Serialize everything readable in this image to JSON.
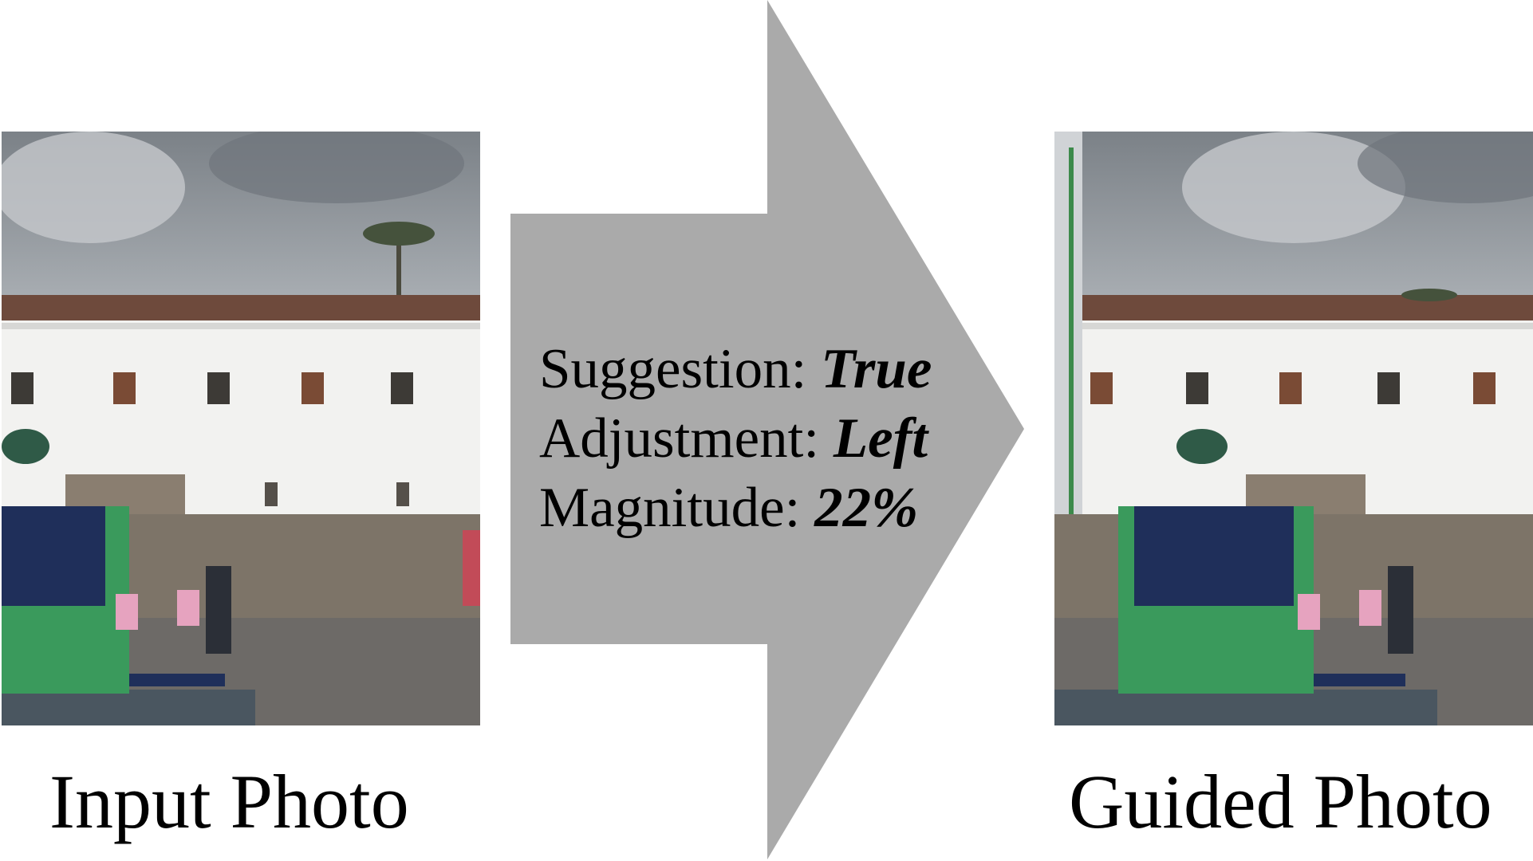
{
  "input": {
    "caption": "Input Photo"
  },
  "guided": {
    "caption": "Guided Photo"
  },
  "suggestion": {
    "suggestion_label": "Suggestion:",
    "suggestion_value": "True",
    "adjustment_label": "Adjustment:",
    "adjustment_value": "Left",
    "magnitude_label": "Magnitude:",
    "magnitude_value": "22%"
  },
  "colors": {
    "arrow": "#aaaaaa",
    "sky": "#8c9196",
    "roof": "#6e4a3c",
    "wall": "#f2f2f0",
    "ground": "#6d6a67",
    "shirt": "#3a9a5c",
    "vest": "#1f2f5a"
  }
}
